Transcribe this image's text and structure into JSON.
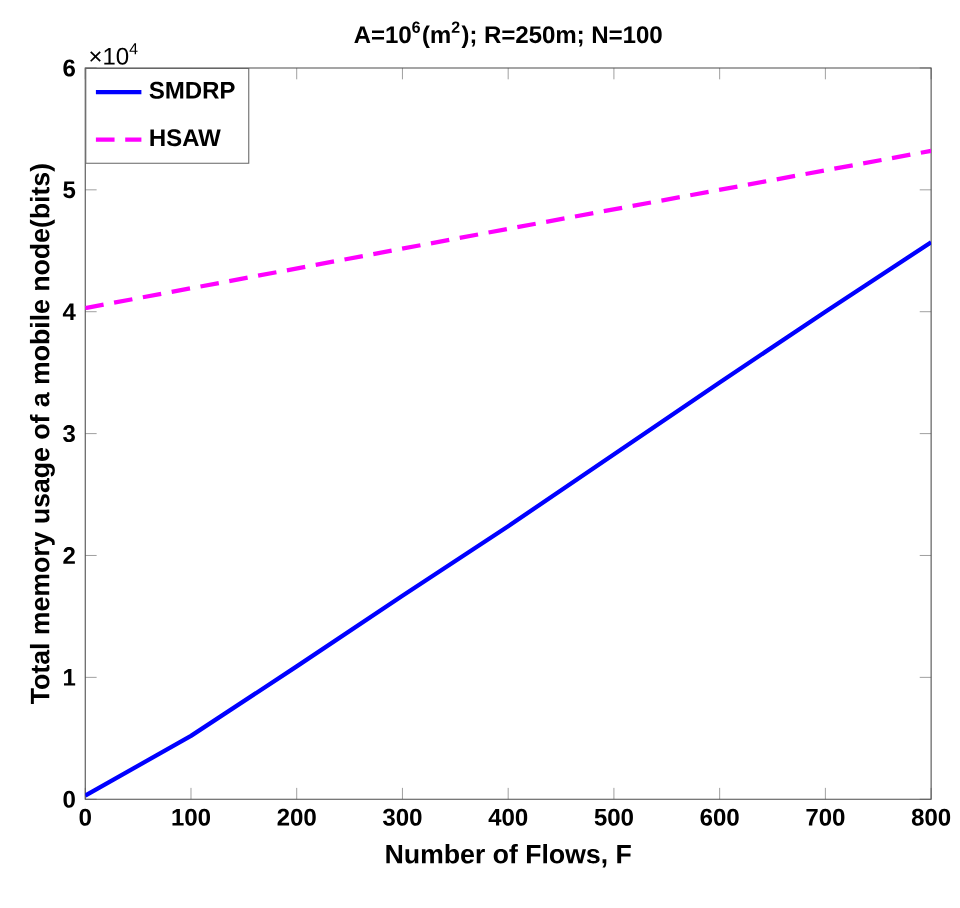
{
  "chart_data": {
    "type": "line",
    "title": "A=10$^{6}$(m$^{2}$); R=250m; N=100",
    "xlabel": "Number of Flows, F",
    "ylabel": "Total memory usage of a mobile node(bits)",
    "annotations": [
      "×10$^{4}$"
    ],
    "x": [
      0,
      100,
      200,
      300,
      400,
      500,
      600,
      700,
      800
    ],
    "series": [
      {
        "name": "SMDRP",
        "color": "#0000ff",
        "line_style": "solid",
        "values": [
          0.03,
          0.52,
          1.09,
          1.67,
          2.24,
          2.83,
          3.42,
          4.0,
          4.57
        ]
      },
      {
        "name": "HSAW",
        "color": "#ff00ff",
        "line_style": "dashed",
        "x": [
          0,
          400,
          800
        ],
        "values": [
          4.03,
          4.68,
          5.32
        ]
      }
    ],
    "xlim": [
      0,
      800
    ],
    "xticks": [
      0,
      100,
      200,
      300,
      400,
      500,
      600,
      700,
      800
    ],
    "ylim": [
      0,
      6
    ],
    "yticks": [
      0,
      1,
      2,
      3,
      4,
      5,
      6
    ],
    "grid": false,
    "legend": "top left",
    "marker": "none"
  }
}
